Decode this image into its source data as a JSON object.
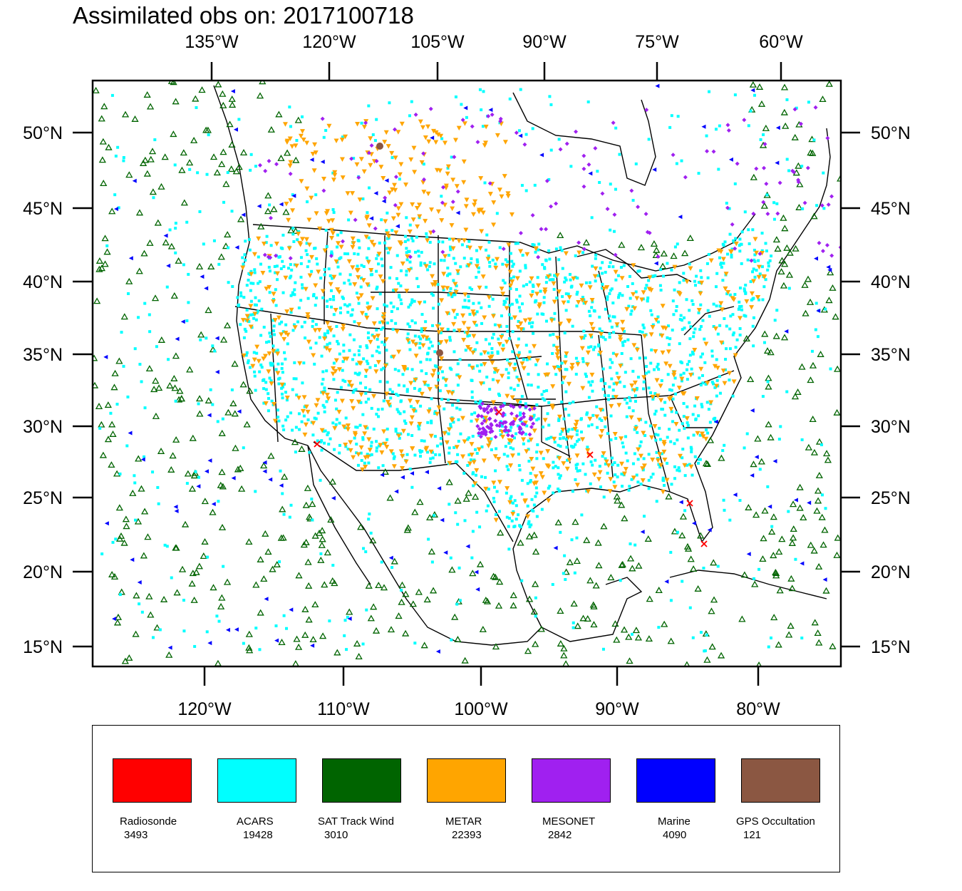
{
  "title": "Assimilated obs on: 2017100718",
  "map": {
    "top_lon_labels": [
      "135°W",
      "120°W",
      "105°W",
      "90°W",
      "75°W",
      "60°W"
    ],
    "bottom_lon_labels": [
      "120°W",
      "110°W",
      "100°W",
      "90°W",
      "80°W"
    ],
    "lat_labels": [
      "50°N",
      "45°N",
      "40°N",
      "35°N",
      "30°N",
      "25°N",
      "20°N",
      "15°N"
    ],
    "lon_range": [
      -128,
      -74
    ],
    "lat_range": [
      14,
      53
    ]
  },
  "legend": [
    {
      "name": "Radiosonde",
      "count": "3493",
      "color": "#ff0000"
    },
    {
      "name": "ACARS",
      "count": "19428",
      "color": "#00ffff"
    },
    {
      "name": "SAT Track Wind",
      "count": "3010",
      "color": "#006400"
    },
    {
      "name": "METAR",
      "count": "22393",
      "color": "#ffa500"
    },
    {
      "name": "MESONET",
      "count": "2842",
      "color": "#a020f0"
    },
    {
      "name": "Marine",
      "count": "4090",
      "color": "#0000ff"
    },
    {
      "name": "GPS Occultation",
      "count": "121",
      "color": "#8b5742"
    }
  ]
}
